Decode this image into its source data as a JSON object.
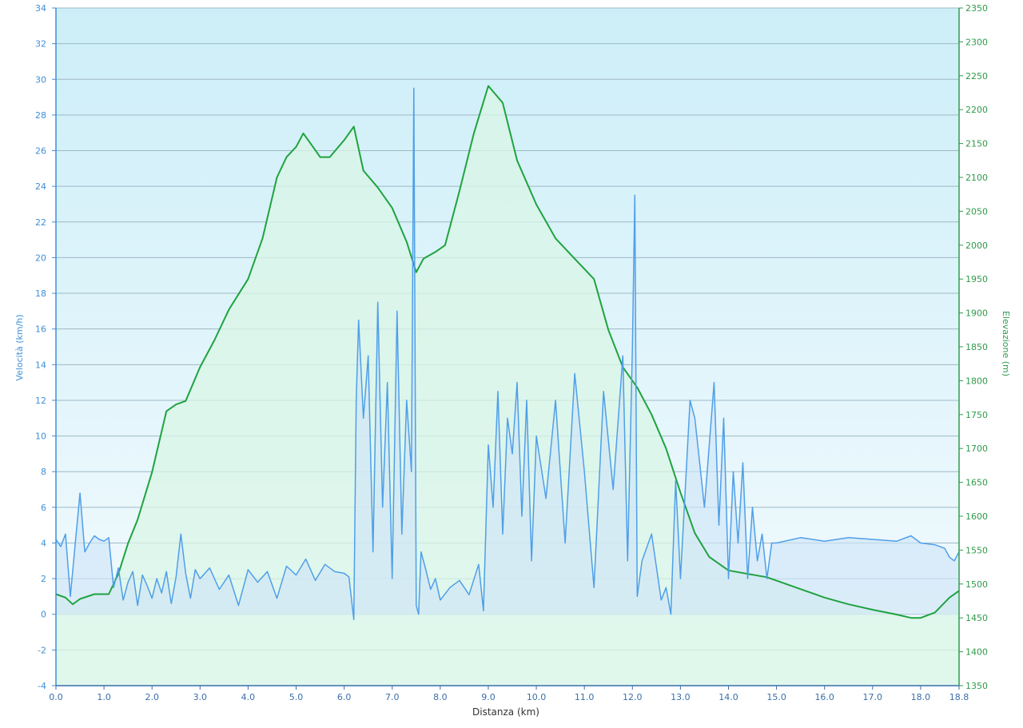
{
  "chart_data": {
    "type": "line",
    "title": "",
    "xlabel": "Distanza  (km)",
    "ylabel_left": "Velocità (km/h)",
    "ylabel_right": "Elevazione (m)",
    "xlim": [
      0,
      18.8
    ],
    "ylim_left": [
      -4,
      34
    ],
    "ylim_right": [
      1350,
      2350
    ],
    "x_ticks": [
      "0.0",
      "1.0",
      "2.0",
      "3.0",
      "4.0",
      "5.0",
      "6.0",
      "7.0",
      "8.0",
      "9.0",
      "10.0",
      "11.0",
      "12.0",
      "13.0",
      "14.0",
      "15.0",
      "16.0",
      "17.0",
      "18.0",
      "18.8"
    ],
    "y_ticks_left": [
      "-4",
      "-2",
      "0",
      "2",
      "4",
      "6",
      "8",
      "10",
      "12",
      "14",
      "16",
      "18",
      "20",
      "22",
      "24",
      "26",
      "28",
      "30",
      "32",
      "34"
    ],
    "y_ticks_right": [
      "1350",
      "1400",
      "1450",
      "1500",
      "1550",
      "1600",
      "1650",
      "1700",
      "1750",
      "1800",
      "1850",
      "1900",
      "1950",
      "2000",
      "2050",
      "2100",
      "2150",
      "2200",
      "2250",
      "2300",
      "2350"
    ],
    "grid": true,
    "colors": {
      "elevation_line": "#1fa33f",
      "speed_line": "#4f9fe8",
      "plot_bg_top": "#cdeef8",
      "plot_bg_bottom": "#f4fbfe",
      "elevation_fill": "#d9f5e6",
      "speed_fill": "#cfe5f7"
    },
    "series": [
      {
        "axis": "right",
        "x": [
          0.0,
          0.2,
          0.35,
          0.5,
          0.8,
          1.1,
          1.3,
          1.5,
          1.7,
          2.0,
          2.3,
          2.5,
          2.7,
          3.0,
          3.3,
          3.6,
          4.0,
          4.3,
          4.6,
          4.8,
          5.0,
          5.15,
          5.3,
          5.5,
          5.7,
          6.0,
          6.2,
          6.4,
          6.7,
          7.0,
          7.3,
          7.5,
          7.65,
          7.9,
          8.1,
          8.4,
          8.7,
          9.0,
          9.3,
          9.6,
          10.0,
          10.4,
          10.8,
          11.2,
          11.5,
          11.8,
          12.1,
          12.4,
          12.7,
          13.0,
          13.3,
          13.6,
          14.0,
          14.4,
          14.8,
          15.2,
          15.6,
          16.0,
          16.5,
          17.0,
          17.5,
          17.8,
          18.0,
          18.3,
          18.6,
          18.8
        ],
        "values": [
          1485,
          1480,
          1470,
          1478,
          1485,
          1485,
          1515,
          1560,
          1595,
          1665,
          1755,
          1765,
          1770,
          1820,
          1860,
          1905,
          1950,
          2010,
          2100,
          2130,
          2145,
          2165,
          2150,
          2130,
          2130,
          2155,
          2175,
          2110,
          2085,
          2055,
          2005,
          1960,
          1980,
          1990,
          2000,
          2080,
          2165,
          2235,
          2210,
          2125,
          2060,
          2010,
          1980,
          1950,
          1875,
          1820,
          1790,
          1750,
          1700,
          1635,
          1575,
          1540,
          1520,
          1515,
          1510,
          1500,
          1490,
          1480,
          1470,
          1462,
          1455,
          1450,
          1450,
          1458,
          1480,
          1490
        ]
      },
      {
        "axis": "left",
        "x": [
          0.0,
          0.1,
          0.2,
          0.3,
          0.4,
          0.5,
          0.6,
          0.7,
          0.8,
          0.9,
          1.0,
          1.1,
          1.2,
          1.3,
          1.4,
          1.5,
          1.6,
          1.7,
          1.8,
          1.9,
          2.0,
          2.1,
          2.2,
          2.3,
          2.4,
          2.5,
          2.6,
          2.7,
          2.8,
          2.9,
          3.0,
          3.2,
          3.4,
          3.6,
          3.8,
          4.0,
          4.2,
          4.4,
          4.6,
          4.8,
          5.0,
          5.2,
          5.4,
          5.6,
          5.8,
          6.0,
          6.1,
          6.2,
          6.25,
          6.3,
          6.4,
          6.5,
          6.6,
          6.7,
          6.8,
          6.9,
          7.0,
          7.1,
          7.2,
          7.3,
          7.4,
          7.45,
          7.5,
          7.55,
          7.6,
          7.7,
          7.8,
          7.9,
          8.0,
          8.2,
          8.4,
          8.6,
          8.8,
          8.9,
          9.0,
          9.1,
          9.2,
          9.3,
          9.4,
          9.5,
          9.6,
          9.7,
          9.8,
          9.9,
          10.0,
          10.2,
          10.4,
          10.6,
          10.8,
          11.0,
          11.2,
          11.4,
          11.6,
          11.8,
          11.9,
          12.0,
          12.05,
          12.1,
          12.2,
          12.4,
          12.6,
          12.7,
          12.8,
          12.9,
          13.0,
          13.2,
          13.3,
          13.5,
          13.7,
          13.8,
          13.9,
          14.0,
          14.1,
          14.2,
          14.3,
          14.4,
          14.5,
          14.6,
          14.7,
          14.8,
          14.9,
          15.0,
          15.5,
          16.0,
          16.5,
          17.0,
          17.5,
          17.8,
          18.0,
          18.3,
          18.5,
          18.6,
          18.7,
          18.8
        ],
        "values": [
          4.2,
          3.8,
          4.5,
          1.0,
          3.9,
          6.8,
          3.5,
          4.0,
          4.4,
          4.2,
          4.1,
          4.3,
          1.5,
          2.6,
          0.8,
          1.8,
          2.4,
          0.5,
          2.2,
          1.6,
          0.9,
          2.0,
          1.2,
          2.4,
          0.6,
          2.1,
          4.5,
          2.3,
          0.9,
          2.5,
          2.0,
          2.6,
          1.4,
          2.2,
          0.5,
          2.5,
          1.8,
          2.4,
          0.9,
          2.7,
          2.2,
          3.1,
          1.9,
          2.8,
          2.4,
          2.3,
          2.1,
          -0.3,
          12.0,
          16.5,
          11.0,
          14.5,
          3.5,
          17.5,
          6.0,
          13.0,
          2.0,
          17.0,
          4.5,
          12.0,
          8.0,
          29.5,
          0.5,
          0.0,
          3.5,
          2.5,
          1.4,
          2.0,
          0.8,
          1.5,
          1.9,
          1.1,
          2.8,
          0.2,
          9.5,
          6.0,
          12.5,
          4.5,
          11.0,
          9.0,
          13.0,
          5.5,
          12.0,
          3.0,
          10.0,
          6.5,
          12.0,
          4.0,
          13.5,
          8.0,
          1.5,
          12.5,
          7.0,
          14.5,
          3.0,
          15.0,
          23.5,
          1.0,
          3.0,
          4.5,
          0.8,
          1.5,
          0.0,
          7.5,
          2.0,
          12.0,
          11.0,
          6.0,
          13.0,
          5.0,
          11.0,
          2.0,
          8.0,
          4.0,
          8.5,
          2.0,
          6.0,
          3.0,
          4.5,
          2.0,
          4.0,
          4.0,
          4.3,
          4.1,
          4.3,
          4.2,
          4.1,
          4.4,
          4.0,
          3.9,
          3.7,
          3.2,
          3.0,
          3.5
        ]
      }
    ]
  }
}
